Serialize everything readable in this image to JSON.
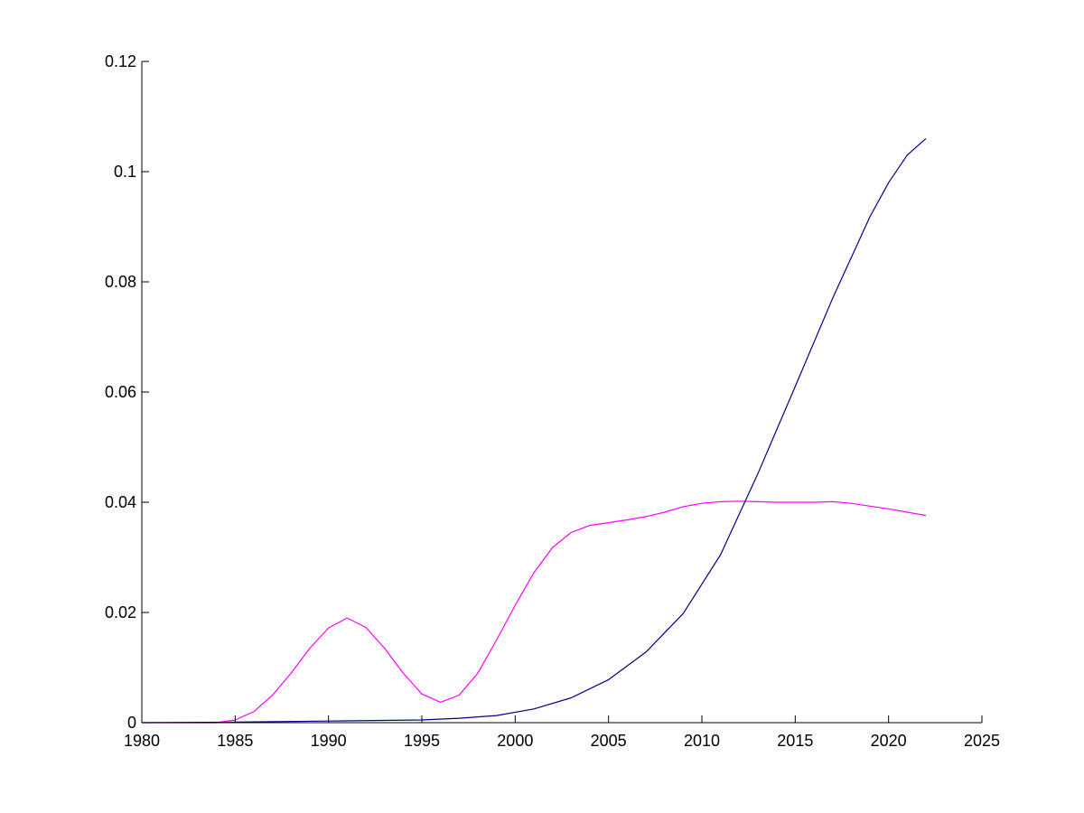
{
  "chart_data": {
    "type": "line",
    "title": "",
    "xlabel": "",
    "ylabel": "",
    "xlim": [
      1980,
      2025
    ],
    "ylim": [
      0,
      0.12
    ],
    "grid": false,
    "x_ticks": [
      1980,
      1985,
      1990,
      1995,
      2000,
      2005,
      2010,
      2015,
      2020,
      2025
    ],
    "x_tick_labels": [
      "1980",
      "1985",
      "1990",
      "1995",
      "2000",
      "2005",
      "2010",
      "2015",
      "2020",
      "2025"
    ],
    "y_ticks": [
      0,
      0.02,
      0.04,
      0.06,
      0.08,
      0.1,
      0.12
    ],
    "y_tick_labels": [
      "0",
      "0.02",
      "0.04",
      "0.06",
      "0.08",
      "0.1",
      "0.12"
    ],
    "series": [
      {
        "color": "#ff00ff",
        "x": [
          1980,
          1981,
          1982,
          1983,
          1984,
          1985,
          1986,
          1987,
          1988,
          1989,
          1990,
          1991,
          1992,
          1993,
          1994,
          1995,
          1996,
          1997,
          1998,
          1999,
          2000,
          2001,
          2002,
          2003,
          2004,
          2005,
          2006,
          2007,
          2008,
          2009,
          2010,
          2011,
          2012,
          2013,
          2014,
          2015,
          2016,
          2017,
          2018,
          2019,
          2020,
          2021,
          2022
        ],
        "values": [
          0,
          0,
          0,
          0,
          0,
          0.0005,
          0.002,
          0.005,
          0.009,
          0.0135,
          0.0172,
          0.019,
          0.0173,
          0.0135,
          0.009,
          0.0052,
          0.0037,
          0.005,
          0.009,
          0.015,
          0.0213,
          0.0272,
          0.0318,
          0.0345,
          0.0358,
          0.0363,
          0.0368,
          0.0374,
          0.0382,
          0.0392,
          0.0398,
          0.0401,
          0.0402,
          0.0401,
          0.04,
          0.04,
          0.04,
          0.0401,
          0.0398,
          0.0393,
          0.0388,
          0.0382,
          0.0376
        ]
      },
      {
        "color": "#00008b",
        "x": [
          1980,
          1985,
          1990,
          1995,
          1997,
          1999,
          2001,
          2003,
          2005,
          2007,
          2009,
          2011,
          2013,
          2015,
          2017,
          2019,
          2020,
          2021,
          2022
        ],
        "values": [
          0,
          0.0001,
          0.0003,
          0.0005,
          0.0008,
          0.0013,
          0.0025,
          0.0045,
          0.0078,
          0.0128,
          0.0198,
          0.0305,
          0.0452,
          0.061,
          0.077,
          0.0918,
          0.098,
          0.103,
          0.106
        ]
      }
    ]
  }
}
